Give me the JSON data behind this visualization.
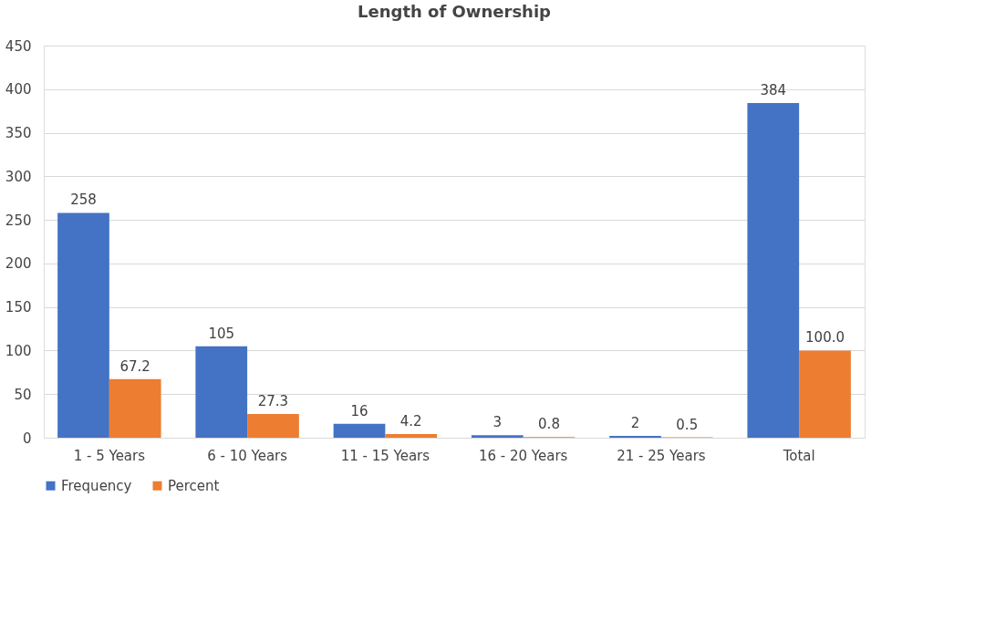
{
  "chart_data": {
    "type": "bar",
    "title": "Length of Ownership",
    "categories": [
      "1 - 5 Years",
      "6 - 10 Years",
      "11 - 15 Years",
      "16 - 20 Years",
      "21 - 25 Years",
      "Total"
    ],
    "series": [
      {
        "name": "Frequency",
        "color": "#4472c4",
        "values": [
          258,
          105,
          16,
          3,
          2,
          384
        ],
        "value_labels": [
          "258",
          "105",
          "16",
          "3",
          "2",
          "384"
        ]
      },
      {
        "name": "Percent",
        "color": "#ed7d31",
        "values": [
          67.2,
          27.3,
          4.2,
          0.8,
          0.5,
          100.0
        ],
        "value_labels": [
          "67.2",
          "27.3",
          "4.2",
          "0.8",
          "0.5",
          "100.0"
        ]
      }
    ],
    "ylim": [
      0,
      450
    ],
    "yticks": [
      0,
      50,
      100,
      150,
      200,
      250,
      300,
      350,
      400,
      450
    ],
    "grid": "y",
    "legend": "bottom"
  }
}
